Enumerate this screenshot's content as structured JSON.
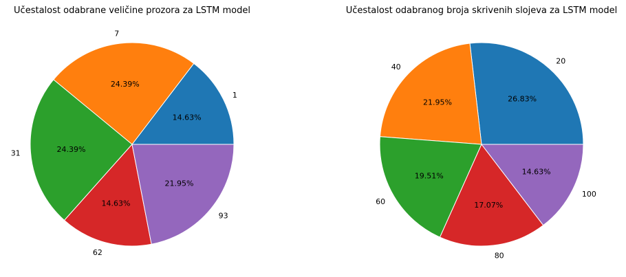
{
  "chart_data": [
    {
      "type": "pie",
      "title": "Učestalost odabrane veličine prozora za LSTM model",
      "categories": [
        "1",
        "7",
        "31",
        "62",
        "93"
      ],
      "values": [
        14.63,
        24.39,
        24.39,
        14.63,
        21.95
      ],
      "percent_labels": [
        "14.63%",
        "24.39%",
        "24.39%",
        "14.63%",
        "21.95%"
      ],
      "colors": [
        "#1f77b4",
        "#ff7f0e",
        "#2ca02c",
        "#d62728",
        "#9467bd"
      ],
      "start_angle_deg": 0,
      "direction": "counterclockwise"
    },
    {
      "type": "pie",
      "title": "Učestalost odabranog broja skrivenih slojeva za LSTM model",
      "categories": [
        "20",
        "40",
        "60",
        "80",
        "100"
      ],
      "values": [
        26.83,
        21.95,
        19.51,
        17.07,
        14.63
      ],
      "percent_labels": [
        "26.83%",
        "21.95%",
        "19.51%",
        "17.07%",
        "14.63%"
      ],
      "colors": [
        "#1f77b4",
        "#ff7f0e",
        "#2ca02c",
        "#d62728",
        "#9467bd"
      ],
      "start_angle_deg": 0,
      "direction": "counterclockwise"
    }
  ]
}
